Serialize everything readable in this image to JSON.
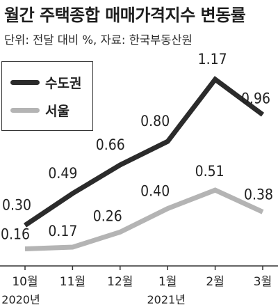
{
  "title": "월간 주택종합 매매가격지수 변동률",
  "subtitle": "단위: 전달 대비 %, 자료: 한국부동산원",
  "colors": {
    "capital": "#2b2b2b",
    "seoul": "#b4b4b4",
    "axis": "#333333"
  },
  "chart_data": {
    "type": "line",
    "categories": [
      "10월",
      "11월",
      "12월",
      "1월",
      "2월",
      "3월"
    ],
    "year_labels": [
      {
        "text": "2020년",
        "category_index": 0
      },
      {
        "text": "2021년",
        "category_index": 3
      }
    ],
    "series": [
      {
        "name": "수도권",
        "values": [
          0.3,
          0.49,
          0.66,
          0.8,
          1.17,
          0.96
        ],
        "labels": [
          "0.30",
          "0.49",
          "0.66",
          "0.80",
          "1.17",
          "0.96"
        ]
      },
      {
        "name": "서울",
        "values": [
          0.16,
          0.17,
          0.26,
          0.4,
          0.51,
          0.38
        ],
        "labels": [
          "0.16",
          "0.17",
          "0.26",
          "0.40",
          "0.51",
          "0.38"
        ]
      }
    ],
    "legend_position": "top-left",
    "grid": false
  }
}
